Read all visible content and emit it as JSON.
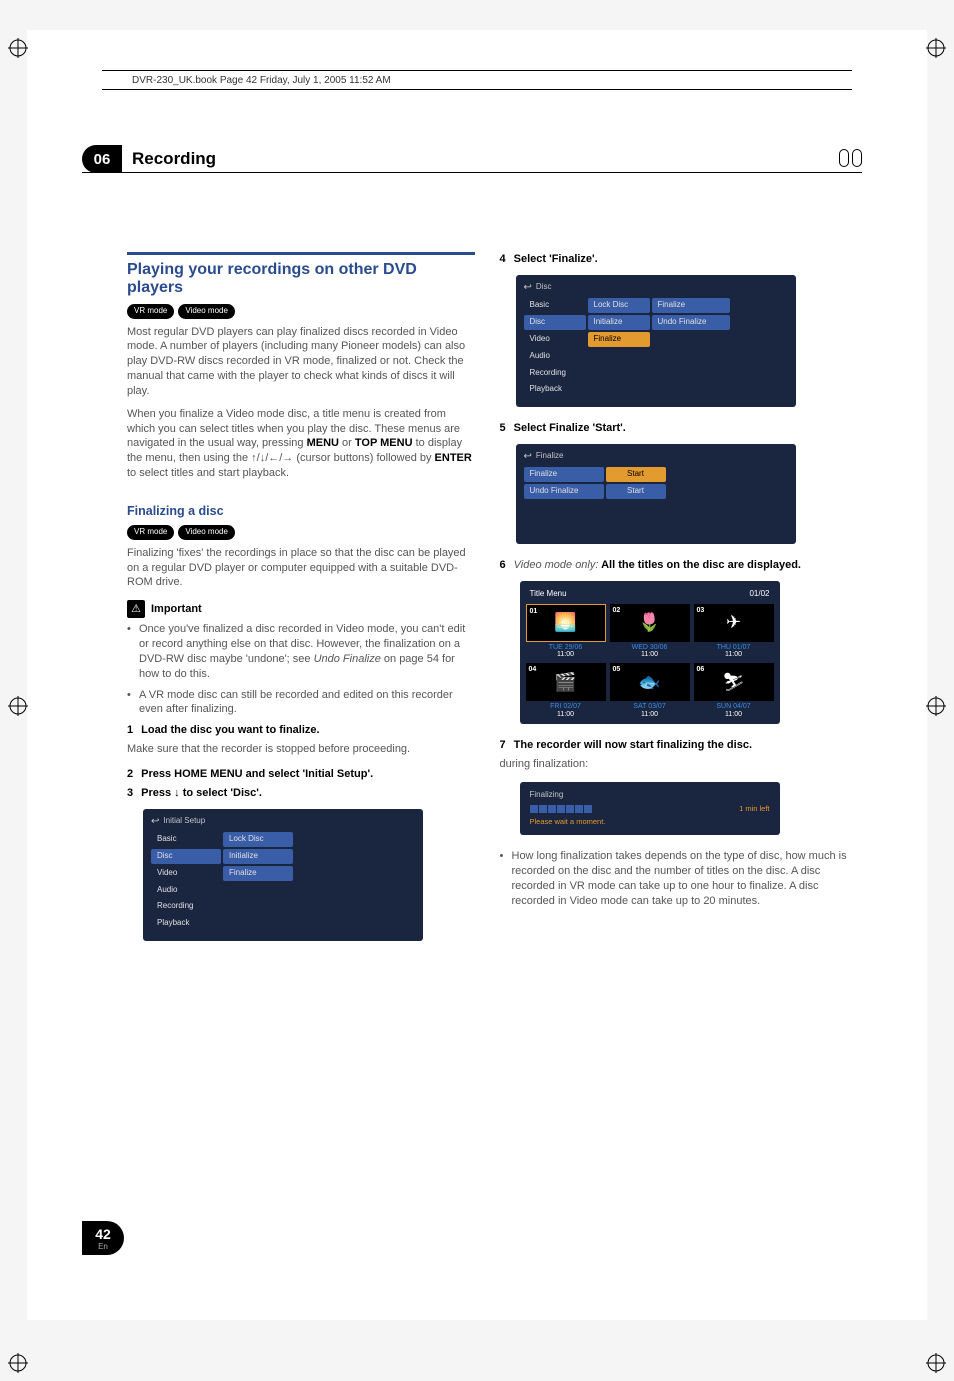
{
  "page": {
    "book_header": "DVR-230_UK.book  Page 42  Friday, July 1, 2005  11:52 AM",
    "chapter_num": "06",
    "chapter_title": "Recording",
    "page_number": "42",
    "lang": "En"
  },
  "colors": {
    "section_blue": "#2a4b8d",
    "body_gray": "#555555",
    "osd_bg": "#1a2540",
    "osd_hl": "#e39a2e",
    "osd_sel": "#3a5da8",
    "tm_date": "#3a8de3"
  },
  "left": {
    "section_title": "Playing your recordings on other DVD players",
    "badges": [
      "VR mode",
      "Video mode"
    ],
    "para1": "Most regular DVD players can play finalized discs recorded in Video mode. A number of players (including many Pioneer models) can also play DVD-RW discs recorded in VR mode, finalized or not. Check the manual that came with the player to check what kinds of discs it will play.",
    "para2_a": "When you finalize a Video mode disc, a title menu is created from which you can select titles when you play the disc. These menus are navigated in the usual way, pressing ",
    "para2_menu": "MENU",
    "para2_or": " or ",
    "para2_top": "TOP MENU",
    "para2_b": " to display the menu, then using the ↑/↓/←/→ (cursor buttons) followed by ",
    "para2_enter": "ENTER",
    "para2_c": " to select titles and start playback.",
    "subsection": "Finalizing a disc",
    "sub_badges": [
      "VR mode",
      "Video mode"
    ],
    "sub_para": "Finalizing 'fixes' the recordings in place so that the disc can be played on a regular DVD player or computer equipped with a suitable DVD-ROM drive.",
    "important_label": "Important",
    "bullets": [
      {
        "pre": "Once you've finalized a disc recorded in Video mode, you can't edit or record anything else on that disc. However, the finalization on a DVD-RW disc maybe 'undone'; see ",
        "italic": "Undo Finalize",
        "post": " on page 54 for how to do this."
      },
      {
        "pre": "A VR mode disc can still be recorded and edited on this recorder even after finalizing.",
        "italic": "",
        "post": ""
      }
    ],
    "step1_num": "1",
    "step1_text": "Load the disc you want to finalize.",
    "step1_sub": "Make sure that the recorder is stopped before proceeding.",
    "step2_num": "2",
    "step2_text": "Press HOME MENU and select 'Initial Setup'.",
    "step3_num": "3",
    "step3_text": "Press ↓ to select 'Disc'.",
    "osd_initial": {
      "title": "Initial Setup",
      "left": [
        "Basic",
        "Disc",
        "Video",
        "Audio",
        "Recording",
        "Playback"
      ],
      "right": [
        "Lock Disc",
        "Initialize",
        "Finalize"
      ],
      "sel_left": 1
    }
  },
  "right": {
    "step4_num": "4",
    "step4_text": "Select 'Finalize'.",
    "osd_disc": {
      "title": "Disc",
      "left": [
        "Basic",
        "Disc",
        "Video",
        "Audio",
        "Recording",
        "Playback"
      ],
      "mid": [
        "Lock Disc",
        "Initialize",
        "Finalize"
      ],
      "right_col": [
        "Finalize",
        "Undo Finalize"
      ],
      "sel_left": 1,
      "hl_mid": 2
    },
    "step5_num": "5",
    "step5_text": "Select Finalize 'Start'.",
    "osd_finalize": {
      "title": "Finalize",
      "rows": [
        {
          "label": "Finalize",
          "btn": "Start",
          "hl": true
        },
        {
          "label": "Undo Finalize",
          "btn": "Start",
          "hl": false
        }
      ]
    },
    "step6_num": "6",
    "step6_italic": "Video mode only:",
    "step6_text": " All the titles on the disc are displayed.",
    "title_menu": {
      "header_left": "Title Menu",
      "header_right": "01/02",
      "cells": [
        {
          "num": "01",
          "icon": "🌅",
          "date": "TUE 29/06",
          "time": "11:00",
          "hl": true
        },
        {
          "num": "02",
          "icon": "🌷",
          "date": "WED 30/06",
          "time": "11:00",
          "hl": false
        },
        {
          "num": "03",
          "icon": "✈",
          "date": "THU 01/07",
          "time": "11:00",
          "hl": false
        },
        {
          "num": "04",
          "icon": "🎬",
          "date": "FRI 02/07",
          "time": "11:00",
          "hl": false
        },
        {
          "num": "05",
          "icon": "🐟",
          "date": "SAT 03/07",
          "time": "11:00",
          "hl": false
        },
        {
          "num": "06",
          "icon": "⛷",
          "date": "SUN 04/07",
          "time": "11:00",
          "hl": false
        }
      ]
    },
    "step7_num": "7",
    "step7_text": "The recorder will now start finalizing the disc.",
    "step7_sub": "during finalization:",
    "finalizing_box": {
      "title": "Finalizing",
      "segments": 7,
      "time_left": "1 min left",
      "wait": "Please wait a moment."
    },
    "tail_bullet": "How long finalization takes depends on the type of disc, how much is recorded on the disc and the number of titles on the disc. A disc recorded in VR mode can take up to one hour to finalize. A disc recorded in Video mode can take up to 20 minutes."
  }
}
